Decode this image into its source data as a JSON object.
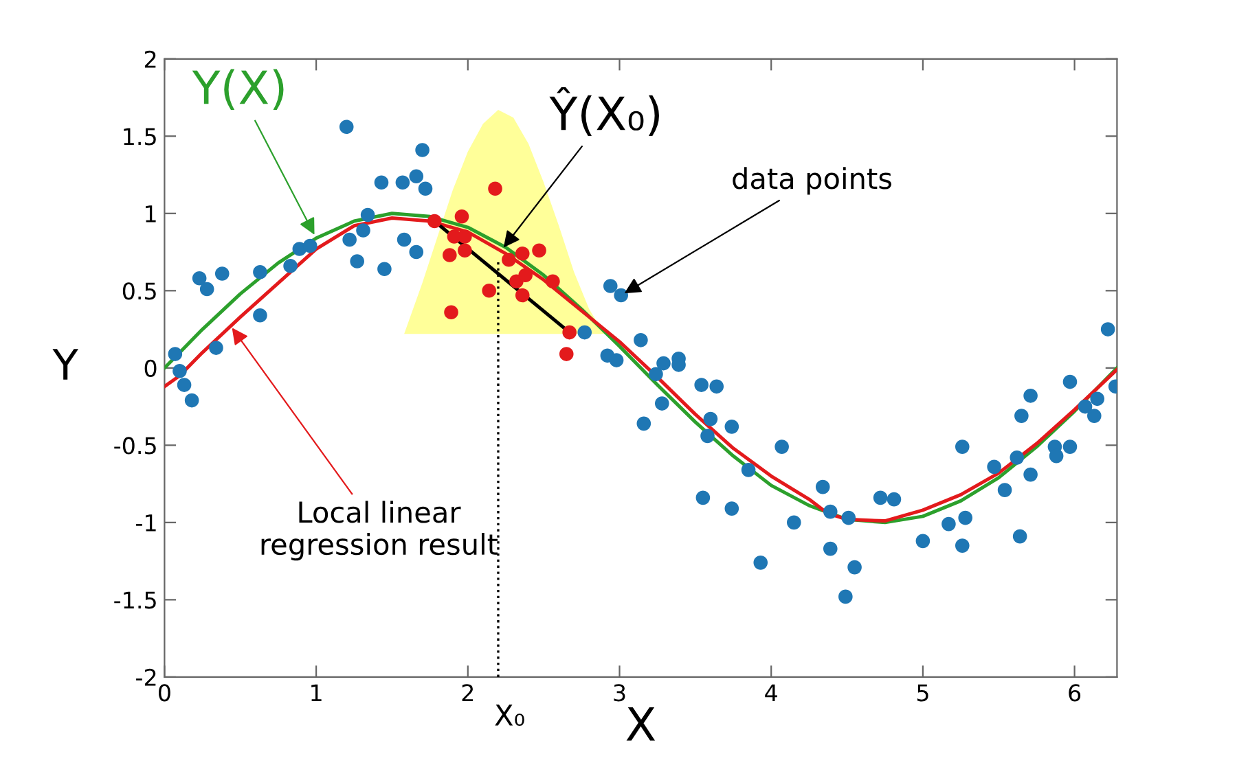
{
  "chart_data": {
    "type": "scatter",
    "xlabel": "X",
    "ylabel": "Y",
    "xlim": [
      0,
      6.28
    ],
    "ylim": [
      -2,
      2
    ],
    "xticks": [
      0,
      1,
      2,
      3,
      4,
      5,
      6
    ],
    "yticks": [
      -2,
      -1.5,
      -1,
      -0.5,
      0,
      0.5,
      1,
      1.5,
      2
    ],
    "grid": false,
    "legend": false,
    "series": [
      {
        "type": "area",
        "color": "#ffff99",
        "x": [
          1.58,
          1.7,
          1.8,
          1.9,
          2.0,
          2.1,
          2.2,
          2.3,
          2.4,
          2.5,
          2.6,
          2.7,
          2.8,
          2.9
        ],
        "values": [
          0.22,
          0.55,
          0.85,
          1.15,
          1.4,
          1.58,
          1.67,
          1.62,
          1.45,
          1.2,
          0.92,
          0.62,
          0.38,
          0.22
        ]
      },
      {
        "type": "line",
        "color": "#000000",
        "line_style": "dotted",
        "x": [
          2.2,
          2.2
        ],
        "values": [
          -2,
          0.7
        ]
      },
      {
        "type": "line",
        "color": "#2ca02c",
        "x": [
          0,
          0.25,
          0.5,
          0.75,
          1,
          1.25,
          1.5,
          1.75,
          2,
          2.25,
          2.5,
          2.75,
          3,
          3.25,
          3.5,
          3.75,
          4,
          4.25,
          4.5,
          4.75,
          5,
          5.25,
          5.5,
          5.75,
          6,
          6.28
        ],
        "values": [
          0,
          0.25,
          0.48,
          0.68,
          0.84,
          0.95,
          1.0,
          0.98,
          0.91,
          0.78,
          0.6,
          0.38,
          0.14,
          -0.11,
          -0.35,
          -0.57,
          -0.76,
          -0.89,
          -0.98,
          -1.0,
          -0.96,
          -0.86,
          -0.71,
          -0.51,
          -0.28,
          0
        ]
      },
      {
        "type": "line",
        "color": "#e31a1c",
        "x": [
          0,
          0.1,
          0.25,
          0.5,
          0.75,
          1,
          1.25,
          1.5,
          1.75,
          2,
          2.25,
          2.5,
          2.75,
          3,
          3.25,
          3.5,
          3.75,
          4,
          4.25,
          4.37,
          4.5,
          4.75,
          5,
          5.25,
          5.5,
          5.75,
          6,
          6.28
        ],
        "values": [
          -0.12,
          -0.05,
          0.1,
          0.33,
          0.55,
          0.77,
          0.92,
          0.97,
          0.95,
          0.88,
          0.74,
          0.57,
          0.37,
          0.17,
          -0.06,
          -0.3,
          -0.52,
          -0.7,
          -0.85,
          -0.94,
          -0.98,
          -0.99,
          -0.92,
          -0.82,
          -0.68,
          -0.49,
          -0.27,
          -0.01
        ]
      },
      {
        "type": "line",
        "color": "#000000",
        "x": [
          1.78,
          2.67
        ],
        "values": [
          0.95,
          0.23
        ]
      },
      {
        "color": "#1f77b4",
        "x": [
          0.07,
          0.1,
          0.13,
          0.18,
          0.23,
          0.28,
          0.38,
          0.34,
          0.63,
          0.63,
          0.83,
          0.89,
          0.96,
          1.2,
          1.22,
          1.27,
          1.31,
          1.34,
          1.43,
          1.45,
          1.57,
          1.58,
          1.66,
          1.7,
          1.72,
          1.66,
          2.77,
          2.92,
          2.98,
          2.94,
          3.01,
          3.14,
          3.16,
          3.24,
          3.28,
          3.29,
          3.39,
          3.39,
          3.54,
          3.6,
          3.58,
          3.64,
          3.74,
          3.85,
          4.07,
          3.55,
          3.74,
          3.93,
          4.15,
          4.34,
          4.39,
          4.51,
          4.39,
          4.55,
          4.49,
          4.72,
          4.81,
          5.0,
          5.17,
          5.28,
          5.26,
          5.26,
          5.47,
          5.54,
          5.62,
          5.64,
          5.65,
          5.71,
          5.71,
          5.87,
          5.88,
          5.97,
          5.97,
          6.07,
          6.15,
          6.13,
          6.22,
          6.27
        ],
        "values": [
          0.09,
          -0.02,
          -0.11,
          -0.21,
          0.58,
          0.51,
          0.61,
          0.13,
          0.62,
          0.34,
          0.66,
          0.77,
          0.79,
          1.56,
          0.83,
          0.69,
          0.89,
          0.99,
          1.2,
          0.64,
          1.2,
          0.83,
          1.24,
          1.41,
          1.16,
          0.75,
          0.23,
          0.08,
          0.05,
          0.53,
          0.47,
          0.18,
          -0.36,
          -0.04,
          -0.23,
          0.03,
          0.06,
          0.02,
          -0.11,
          -0.33,
          -0.44,
          -0.12,
          -0.38,
          -0.66,
          -0.51,
          -0.84,
          -0.91,
          -1.26,
          -1.0,
          -0.77,
          -0.93,
          -0.97,
          -1.17,
          -1.29,
          -1.48,
          -0.84,
          -0.85,
          -1.12,
          -1.01,
          -0.97,
          -1.15,
          -0.51,
          -0.64,
          -0.79,
          -0.58,
          -1.09,
          -0.31,
          -0.18,
          -0.69,
          -0.51,
          -0.57,
          -0.51,
          -0.09,
          -0.25,
          -0.2,
          -0.31,
          0.25,
          -0.12
        ]
      },
      {
        "color": "#e31a1c",
        "x": [
          1.78,
          1.96,
          1.89,
          1.88,
          1.91,
          1.98,
          1.98,
          2.18,
          2.14,
          2.27,
          2.36,
          2.47,
          2.32,
          2.36,
          2.38,
          2.56,
          2.67,
          2.65
        ],
        "values": [
          0.95,
          0.98,
          0.36,
          0.73,
          0.85,
          0.85,
          0.76,
          1.16,
          0.5,
          0.7,
          0.74,
          0.76,
          0.56,
          0.47,
          0.6,
          0.56,
          0.23,
          0.09
        ]
      }
    ],
    "annotations": [
      {
        "text": "X₀",
        "x": 2.2,
        "y": -2
      },
      {
        "text": "Y(X)",
        "x": 1.0,
        "y": 0.84
      },
      {
        "text": "Ŷ(X₀)",
        "x": 2.22,
        "y": 0.76
      },
      {
        "text": "data points",
        "x": 3.01,
        "y": 0.47
      },
      {
        "text": "Local linear\nregression result",
        "x": 0.43,
        "y": 0.28
      }
    ]
  }
}
